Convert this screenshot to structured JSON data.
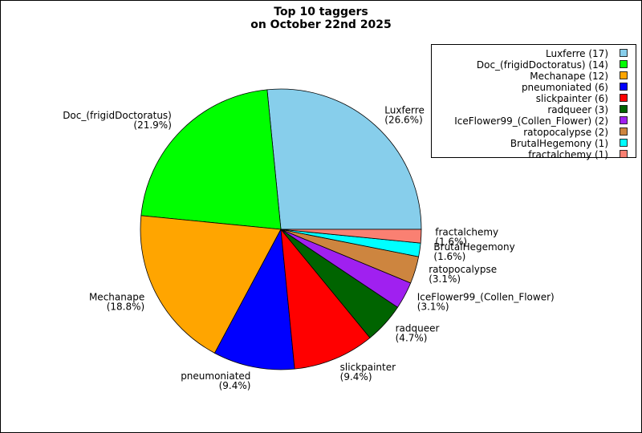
{
  "chart_data": {
    "type": "pie",
    "title": "Top 10 taggers",
    "subtitle": "on October 22nd 2025",
    "categories": [
      "Luxferre",
      "Doc_(frigidDoctoratus)",
      "Mechanape",
      "pneumoniated",
      "slickpainter",
      "radqueer",
      "IceFlower99_(Collen_Flower)",
      "ratopocalypse",
      "BrutalHegemony",
      "fractalchemy"
    ],
    "values": [
      17,
      14,
      12,
      6,
      6,
      3,
      2,
      2,
      1,
      1
    ],
    "percents": [
      26.6,
      21.9,
      18.8,
      9.4,
      9.4,
      4.7,
      3.1,
      3.1,
      1.6,
      1.6
    ],
    "percent_labels": [
      "(26.6%)",
      "(21.9%)",
      "(18.8%)",
      "(9.4%)",
      "(9.4%)",
      "(4.7%)",
      "(3.1%)",
      "(3.1%)",
      "(1.6%)",
      "(1.6%)"
    ],
    "legend_labels": [
      "Luxferre (17)",
      "Doc_(frigidDoctoratus) (14)",
      "Mechanape (12)",
      "pneumoniated (6)",
      "slickpainter (6)",
      "radqueer (3)",
      "IceFlower99_(Collen_Flower) (2)",
      "ratopocalypse (2)",
      "BrutalHegemony (1)",
      "fractalchemy (1)"
    ],
    "colors": [
      "#87ceeb",
      "#00ff00",
      "#ffa500",
      "#0000ff",
      "#ff0000",
      "#006400",
      "#a020f0",
      "#cd853f",
      "#00ffff",
      "#fa8072"
    ],
    "legend": "upper right"
  }
}
